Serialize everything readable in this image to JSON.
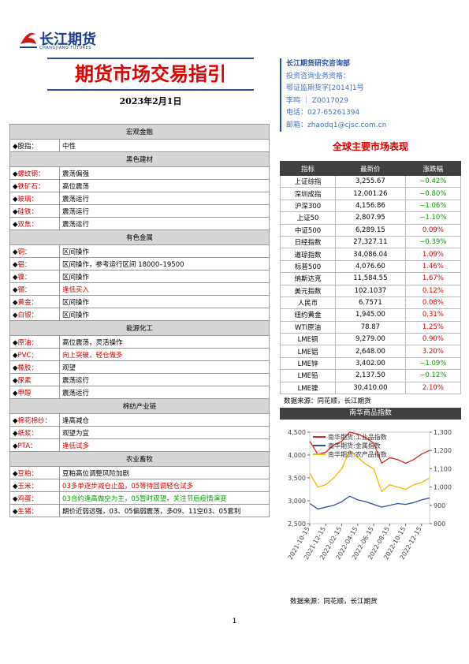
{
  "header": {
    "logo_text": "长江期货",
    "logo_sub": "CHANGJIANG FUTURES",
    "title": "期货市场交易指引",
    "date": "2023年2月1日"
  },
  "contact": [
    "长江期货研究咨询部",
    "投资咨询业务资格：",
    "鄂证监期货字[2014]1号",
    "李鸣 ｜ Z0017029",
    "电话：027-65261394",
    "邮箱：zhaodq1@cjsc.com.cn"
  ],
  "left_table": {
    "sections": [
      {
        "title": "宏观金融",
        "rows": [
          {
            "label": "股指：",
            "view": "中性"
          }
        ]
      },
      {
        "title": "黑色建材",
        "rows": [
          {
            "label": "螺纹钢：",
            "view": "震荡偏强"
          },
          {
            "label": "铁矿石：",
            "view": "高位震荡"
          },
          {
            "label": "玻璃：",
            "view": "震荡运行"
          },
          {
            "label": "硅铁：",
            "view": "震荡运行"
          },
          {
            "label": "双焦：",
            "view": "震荡运行"
          }
        ]
      },
      {
        "title": "有色金属",
        "rows": [
          {
            "label": "铜：",
            "view": "区间操作"
          },
          {
            "label": "铝：",
            "view": "区间操作，参考运行区间 18000–19500"
          },
          {
            "label": "镍：",
            "view": "区间操作"
          },
          {
            "label": "锡：",
            "view": "逢低买入",
            "color": "#e00000"
          },
          {
            "label": "黄金：",
            "view": "区间操作"
          },
          {
            "label": "白银：",
            "view": "区间操作"
          }
        ]
      },
      {
        "title": "能源化工",
        "rows": [
          {
            "label": "原油：",
            "view": "高位震荡，灵活操作"
          },
          {
            "label": "PVC：",
            "view": "向上突破，轻仓做多",
            "color": "#e00000"
          },
          {
            "label": "橡胶：",
            "view": "观望"
          },
          {
            "label": "尿素",
            "view": "震荡运行"
          },
          {
            "label": "甲醇",
            "view": "震荡运行"
          }
        ]
      },
      {
        "title": "棉纺产业链",
        "rows": [
          {
            "label": "棉花棉纱：",
            "view": "逢高减仓"
          },
          {
            "label": "纸浆：",
            "view": "观望为宜"
          },
          {
            "label": "PTA：",
            "view": "逢低试多",
            "color": "#e00000"
          }
        ]
      },
      {
        "title": "农业畜牧",
        "rows": [
          {
            "label": "豆粕：",
            "view": "豆粕高位调整风险加剧"
          },
          {
            "label": "玉米：",
            "view": "03多单逐步减仓止盈，05等待回调轻仓试多",
            "color": "#e00000"
          },
          {
            "label": "鸡蛋：",
            "view": "03合约逢高做空为主，05暂时观望，关注节后疫情演变",
            "color": "#00a000"
          },
          {
            "label": "生猪：",
            "view": "期价近弱远强，03、05偏弱震荡，多09、11空03、05套利"
          }
        ]
      }
    ]
  },
  "market": {
    "title": "全球主要市场表现",
    "headers": [
      "指标",
      "最新价",
      "涨跌幅"
    ],
    "rows": [
      [
        "上证综指",
        "3,255.67",
        "−0.42%"
      ],
      [
        "深圳成指",
        "12,001.26",
        "−0.80%"
      ],
      [
        "沪深300",
        "4,156.86",
        "−1.06%"
      ],
      [
        "上证50",
        "2,807.95",
        "−1.10%"
      ],
      [
        "中证500",
        "6,289.15",
        "0.09%"
      ],
      [
        "日经指数",
        "27,327.11",
        "−0.39%"
      ],
      [
        "道琼指数",
        "34,086.04",
        "1.09%"
      ],
      [
        "标普500",
        "4,076.60",
        "1.46%"
      ],
      [
        "纳斯达克",
        "11,584.55",
        "1.67%"
      ],
      [
        "美元指数",
        "102.1037",
        "0.12%"
      ],
      [
        "人民币",
        "6.7571",
        "0.08%"
      ],
      [
        "纽约黄金",
        "1,945.00",
        "0.31%"
      ],
      [
        "WTI原油",
        "78.87",
        "1.25%"
      ],
      [
        "LME铜",
        "9,279.00",
        "0.90%"
      ],
      [
        "LME铝",
        "2,648.00",
        "3.20%"
      ],
      [
        "LME锌",
        "3,402.00",
        "−1.09%"
      ],
      [
        "LME铅",
        "2,137.50",
        "−0.12%"
      ],
      [
        "LME镍",
        "30,410.00",
        "2.10%"
      ]
    ],
    "source": "数据来源：同花顺，长江期货"
  },
  "chart": {
    "type": "line",
    "title": "南华商品指数",
    "categories": [
      "2021-10-15",
      null,
      "2021-12-15",
      null,
      "2022-02-15",
      null,
      "2022-04-15",
      null,
      "2022-06-15",
      null,
      "2022-08-15",
      null,
      "2022-10-15",
      null,
      "2022-12-15",
      null
    ],
    "ylim": [
      2500,
      4500
    ],
    "yticks": [
      {
        "value": 2500,
        "label": "2,500"
      },
      {
        "value": 3000,
        "label": "3,000"
      },
      {
        "value": 3500,
        "label": "3,500"
      },
      {
        "value": 4000,
        "label": "4,000"
      },
      {
        "value": 4500,
        "label": "4,500"
      }
    ],
    "y2lim": [
      800,
      1300
    ],
    "y2ticks": [
      800,
      900,
      {
        "value": 1000,
        "label": "1,000"
      },
      {
        "value": 1100,
        "label": "1,100"
      },
      {
        "value": 1200,
        "label": "1,200"
      },
      {
        "value": 1300,
        "label": "1,300"
      }
    ],
    "series": [
      {
        "name": "南华期货:工业品指数",
        "color": "#e02020",
        "axis": "y2",
        "values": [
          1250,
          1180,
          1190,
          1230,
          1250,
          1300,
          1290,
          1270,
          1240,
          1130,
          1160,
          1150,
          1130,
          1150,
          1180,
          1200
        ]
      },
      {
        "name": "南华期货:金属指数",
        "color": "#2f4f9f",
        "axis": "y2",
        "values": [
          910,
          880,
          890,
          900,
          920,
          950,
          930,
          920,
          905,
          890,
          900,
          910,
          905,
          915,
          930,
          940
        ]
      },
      {
        "name": "南华期货:农产品指数",
        "color": "#f5b800",
        "values": [
          3600,
          3300,
          3350,
          3500,
          3700,
          4100,
          3950,
          3800,
          3700,
          3200,
          3350,
          3300,
          3250,
          3350,
          3400,
          3500
        ]
      }
    ],
    "source": "数据来源：同花顺，长江期货"
  },
  "page_number": "1"
}
